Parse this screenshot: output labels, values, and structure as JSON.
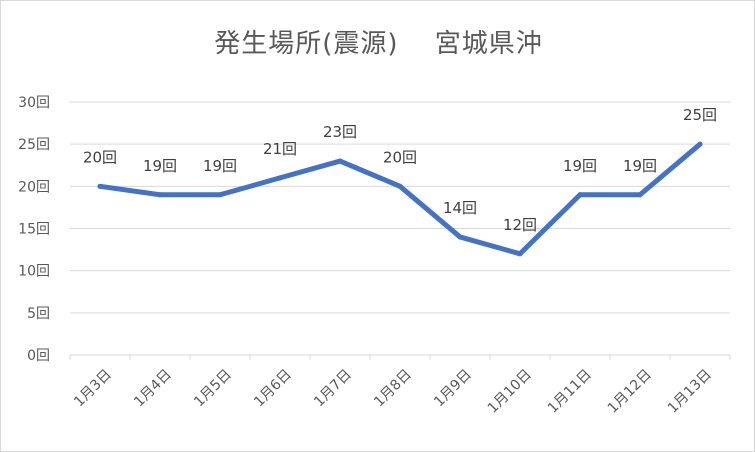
{
  "chart_data": {
    "type": "line",
    "title": "発生場所(震源)　 宮城県沖",
    "categories": [
      "1月3日",
      "1月4日",
      "1月5日",
      "1月6日",
      "1月7日",
      "1月8日",
      "1月9日",
      "1月10日",
      "1月11日",
      "1月12日",
      "1月13日"
    ],
    "series": [
      {
        "values": [
          20,
          19,
          19,
          21,
          23,
          20,
          14,
          12,
          19,
          19,
          25
        ],
        "color": "#4472c4"
      }
    ],
    "data_labels": [
      "20回",
      "19回",
      "19回",
      "21回",
      "23回",
      "20回",
      "14回",
      "12回",
      "19回",
      "19回",
      "25回"
    ],
    "yticks": [
      "0回",
      "5回",
      "10回",
      "15回",
      "20回",
      "25回",
      "30回"
    ],
    "ylim": [
      0,
      30
    ],
    "grid": true,
    "legend": "none"
  }
}
